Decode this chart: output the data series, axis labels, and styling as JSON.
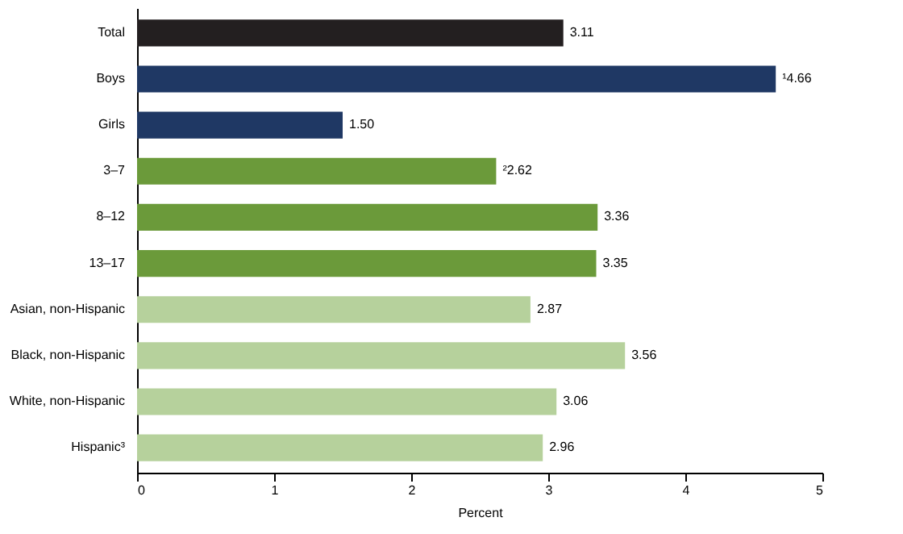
{
  "chart_data": {
    "type": "bar",
    "orientation": "horizontal",
    "xlabel": "Percent",
    "categories": [
      "Total",
      "Boys",
      "Girls",
      "3–7",
      "8–12",
      "13–17",
      "Asian, non-Hispanic",
      "Black, non-Hispanic",
      "White, non-Hispanic",
      "Hispanic³"
    ],
    "values": [
      3.11,
      4.66,
      1.5,
      2.62,
      3.36,
      3.35,
      2.87,
      3.56,
      3.06,
      2.96
    ],
    "value_labels": [
      "3.11",
      "¹4.66",
      "1.50",
      "²2.62",
      "3.36",
      "3.35",
      "2.87",
      "3.56",
      "3.06",
      "2.96"
    ],
    "colors": [
      "#231f20",
      "#1f3864",
      "#1f3864",
      "#6b9a3a",
      "#6b9a3a",
      "#6b9a3a",
      "#b6d19c",
      "#b6d19c",
      "#b6d19c",
      "#b6d19c"
    ],
    "xlim": [
      0,
      5
    ],
    "xticks": [
      0,
      1,
      2,
      3,
      4,
      5
    ],
    "grid": false
  }
}
